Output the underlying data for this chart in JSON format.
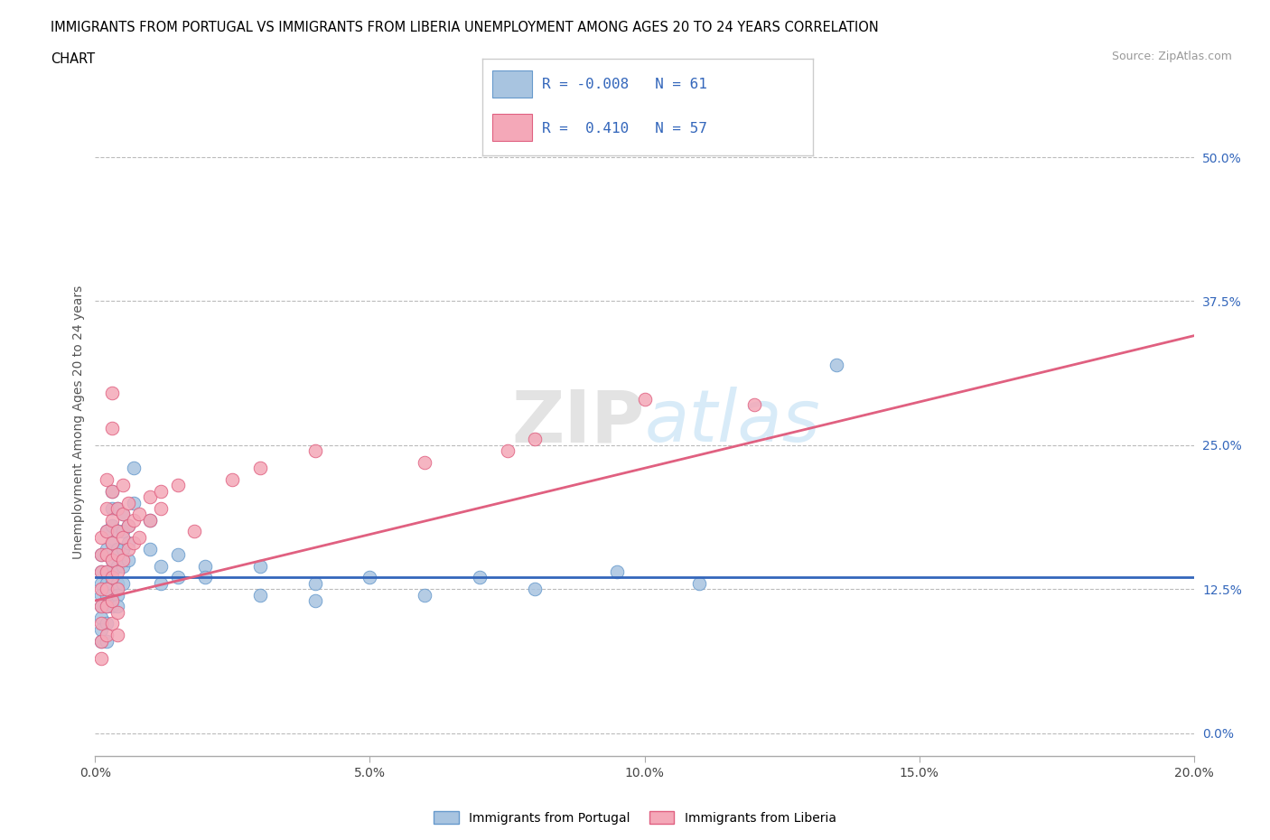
{
  "title_line1": "IMMIGRANTS FROM PORTUGAL VS IMMIGRANTS FROM LIBERIA UNEMPLOYMENT AMONG AGES 20 TO 24 YEARS CORRELATION",
  "title_line2": "CHART",
  "source": "Source: ZipAtlas.com",
  "ylabel": "Unemployment Among Ages 20 to 24 years",
  "xlim": [
    0.0,
    0.2
  ],
  "ylim": [
    -0.02,
    0.56
  ],
  "yticks": [
    0.0,
    0.125,
    0.25,
    0.375,
    0.5
  ],
  "ytick_labels": [
    "0.0%",
    "12.5%",
    "25.0%",
    "37.5%",
    "50.0%"
  ],
  "xticks": [
    0.0,
    0.05,
    0.1,
    0.15,
    0.2
  ],
  "xtick_labels": [
    "0.0%",
    "5.0%",
    "10.0%",
    "15.0%",
    "20.0%"
  ],
  "portugal_color": "#a8c4e0",
  "liberia_color": "#f4a8b8",
  "portugal_edge": "#6699cc",
  "liberia_edge": "#e06080",
  "trend_portugal_color": "#3366bb",
  "trend_liberia_color": "#e06080",
  "R_portugal": -0.008,
  "N_portugal": 61,
  "R_liberia": 0.41,
  "N_liberia": 57,
  "legend_label_portugal": "Immigrants from Portugal",
  "legend_label_liberia": "Immigrants from Liberia",
  "portugal_scatter": [
    [
      0.001,
      0.155
    ],
    [
      0.001,
      0.14
    ],
    [
      0.001,
      0.13
    ],
    [
      0.001,
      0.12
    ],
    [
      0.001,
      0.11
    ],
    [
      0.001,
      0.1
    ],
    [
      0.001,
      0.09
    ],
    [
      0.001,
      0.08
    ],
    [
      0.002,
      0.175
    ],
    [
      0.002,
      0.16
    ],
    [
      0.002,
      0.14
    ],
    [
      0.002,
      0.13
    ],
    [
      0.002,
      0.12
    ],
    [
      0.002,
      0.11
    ],
    [
      0.002,
      0.095
    ],
    [
      0.002,
      0.08
    ],
    [
      0.003,
      0.21
    ],
    [
      0.003,
      0.195
    ],
    [
      0.003,
      0.18
    ],
    [
      0.003,
      0.165
    ],
    [
      0.003,
      0.15
    ],
    [
      0.003,
      0.14
    ],
    [
      0.003,
      0.13
    ],
    [
      0.003,
      0.12
    ],
    [
      0.003,
      0.11
    ],
    [
      0.004,
      0.195
    ],
    [
      0.004,
      0.175
    ],
    [
      0.004,
      0.16
    ],
    [
      0.004,
      0.145
    ],
    [
      0.004,
      0.13
    ],
    [
      0.004,
      0.12
    ],
    [
      0.004,
      0.11
    ],
    [
      0.005,
      0.19
    ],
    [
      0.005,
      0.175
    ],
    [
      0.005,
      0.16
    ],
    [
      0.005,
      0.145
    ],
    [
      0.005,
      0.13
    ],
    [
      0.006,
      0.18
    ],
    [
      0.006,
      0.165
    ],
    [
      0.006,
      0.15
    ],
    [
      0.007,
      0.23
    ],
    [
      0.007,
      0.2
    ],
    [
      0.01,
      0.185
    ],
    [
      0.01,
      0.16
    ],
    [
      0.012,
      0.145
    ],
    [
      0.012,
      0.13
    ],
    [
      0.015,
      0.155
    ],
    [
      0.015,
      0.135
    ],
    [
      0.02,
      0.145
    ],
    [
      0.02,
      0.135
    ],
    [
      0.03,
      0.145
    ],
    [
      0.03,
      0.12
    ],
    [
      0.04,
      0.13
    ],
    [
      0.04,
      0.115
    ],
    [
      0.05,
      0.135
    ],
    [
      0.06,
      0.12
    ],
    [
      0.07,
      0.135
    ],
    [
      0.08,
      0.125
    ],
    [
      0.095,
      0.14
    ],
    [
      0.11,
      0.13
    ],
    [
      0.135,
      0.32
    ]
  ],
  "liberia_scatter": [
    [
      0.001,
      0.17
    ],
    [
      0.001,
      0.155
    ],
    [
      0.001,
      0.14
    ],
    [
      0.001,
      0.125
    ],
    [
      0.001,
      0.11
    ],
    [
      0.001,
      0.095
    ],
    [
      0.001,
      0.08
    ],
    [
      0.001,
      0.065
    ],
    [
      0.002,
      0.22
    ],
    [
      0.002,
      0.195
    ],
    [
      0.002,
      0.175
    ],
    [
      0.002,
      0.155
    ],
    [
      0.002,
      0.14
    ],
    [
      0.002,
      0.125
    ],
    [
      0.002,
      0.11
    ],
    [
      0.002,
      0.085
    ],
    [
      0.003,
      0.295
    ],
    [
      0.003,
      0.265
    ],
    [
      0.003,
      0.21
    ],
    [
      0.003,
      0.185
    ],
    [
      0.003,
      0.165
    ],
    [
      0.003,
      0.15
    ],
    [
      0.003,
      0.135
    ],
    [
      0.003,
      0.115
    ],
    [
      0.003,
      0.095
    ],
    [
      0.004,
      0.195
    ],
    [
      0.004,
      0.175
    ],
    [
      0.004,
      0.155
    ],
    [
      0.004,
      0.14
    ],
    [
      0.004,
      0.125
    ],
    [
      0.004,
      0.105
    ],
    [
      0.004,
      0.085
    ],
    [
      0.005,
      0.215
    ],
    [
      0.005,
      0.19
    ],
    [
      0.005,
      0.17
    ],
    [
      0.005,
      0.15
    ],
    [
      0.006,
      0.2
    ],
    [
      0.006,
      0.18
    ],
    [
      0.006,
      0.16
    ],
    [
      0.007,
      0.185
    ],
    [
      0.007,
      0.165
    ],
    [
      0.008,
      0.19
    ],
    [
      0.008,
      0.17
    ],
    [
      0.01,
      0.205
    ],
    [
      0.01,
      0.185
    ],
    [
      0.012,
      0.21
    ],
    [
      0.012,
      0.195
    ],
    [
      0.015,
      0.215
    ],
    [
      0.018,
      0.175
    ],
    [
      0.025,
      0.22
    ],
    [
      0.03,
      0.23
    ],
    [
      0.04,
      0.245
    ],
    [
      0.06,
      0.235
    ],
    [
      0.075,
      0.245
    ],
    [
      0.08,
      0.255
    ],
    [
      0.1,
      0.29
    ],
    [
      0.12,
      0.285
    ]
  ],
  "trend_portugal_slope": 0.0,
  "trend_portugal_intercept": 0.135,
  "trend_liberia_x0": 0.0,
  "trend_liberia_y0": 0.115,
  "trend_liberia_x1": 0.2,
  "trend_liberia_y1": 0.345
}
